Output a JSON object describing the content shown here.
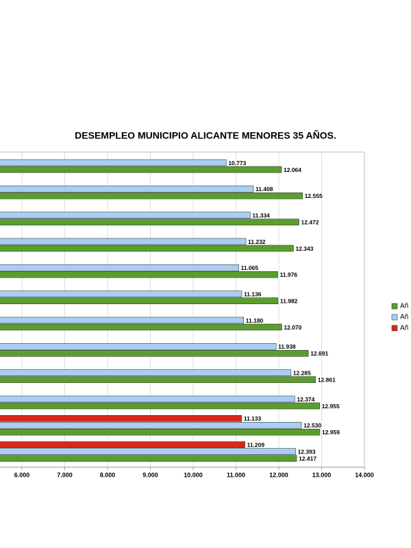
{
  "chart_data": {
    "type": "hbar",
    "title": "DESEMPLEO MUNICIPIO ALICANTE MENORES 35 AÑOS.",
    "categories": [
      null,
      null,
      null,
      null,
      null,
      null,
      null,
      null,
      null,
      null,
      null,
      null
    ],
    "series": [
      {
        "name": "Añ",
        "color": "#5a9e2f",
        "values": [
          12064,
          12555,
          12472,
          12343,
          11976,
          11982,
          12070,
          12691,
          12861,
          12955,
          12959,
          12417
        ],
        "value_labels": [
          "12.064",
          "12.555",
          "12.472",
          "12.343",
          "11.976",
          "11.982",
          "12.070",
          "12.691",
          "12.861",
          "12.955",
          "12.959",
          "12.417"
        ]
      },
      {
        "name": "Añ",
        "color": "#a8cff2",
        "values": [
          10773,
          11408,
          11334,
          11232,
          11065,
          11136,
          11180,
          11938,
          12285,
          12374,
          12530,
          12393
        ],
        "value_labels": [
          "10.773",
          "11.408",
          "11.334",
          "11.232",
          "11.065",
          "11.136",
          "11.180",
          "11.938",
          "12.285",
          "12.374",
          "12.530",
          "12.393"
        ]
      },
      {
        "name": "Añ",
        "color": "#d8281c",
        "values": [
          null,
          null,
          null,
          null,
          null,
          null,
          null,
          null,
          null,
          null,
          11133,
          11209
        ],
        "value_labels": [
          null,
          null,
          null,
          null,
          null,
          null,
          null,
          null,
          null,
          null,
          "11.133",
          "11.209"
        ]
      }
    ],
    "xlim": [
      5000,
      14000
    ],
    "xticks": [
      {
        "value": 6000,
        "label": "6.000"
      },
      {
        "value": 7000,
        "label": "7.000"
      },
      {
        "value": 8000,
        "label": "8.000"
      },
      {
        "value": 9000,
        "label": "9.000"
      },
      {
        "value": 10000,
        "label": "10.000"
      },
      {
        "value": 11000,
        "label": "11.000"
      },
      {
        "value": 12000,
        "label": "12.000"
      },
      {
        "value": 13000,
        "label": "13.000"
      },
      {
        "value": 14000,
        "label": "14.000"
      }
    ],
    "grid": true,
    "legend": "right"
  }
}
